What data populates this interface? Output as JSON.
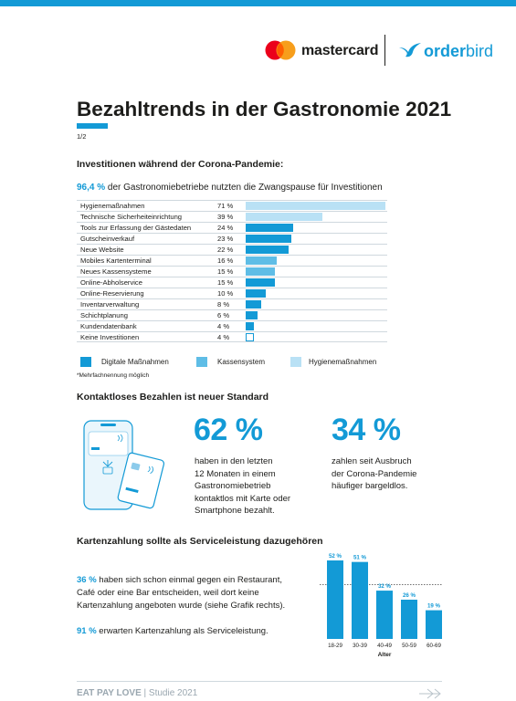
{
  "brand": {
    "mastercard": "mastercard",
    "orderbird_a": "order",
    "orderbird_b": "bird",
    "accent": "#139ad6"
  },
  "title": "Bezahltrends in der Gastronomie 2021",
  "page": "1/2",
  "section1": {
    "heading": "Investitionen während der Corona-Pandemie:",
    "intro_value": "96,4 %",
    "intro_text": " der Gastronomiebetriebe nutzten die Zwangspause für Investitionen",
    "footnote": "*Mehrfachnennung möglich"
  },
  "legend": [
    {
      "label": "Digitale Maßnahmen",
      "color": "#139ad6"
    },
    {
      "label": "Kassensystem",
      "color": "#5fbde6"
    },
    {
      "label": "Hygienemaßnahmen",
      "color": "#b9e1f5"
    }
  ],
  "section2": {
    "heading": "Kontaktloses Bezahlen ist neuer Standard",
    "stat1_value": "62 %",
    "stat1_lines": [
      "haben in den letzten",
      "12 Monaten in einem",
      "Gastronomiebetrieb",
      "kontaktlos mit Karte oder",
      "Smartphone bezahlt."
    ],
    "stat2_value": "34 %",
    "stat2_lines": [
      "zahlen seit Ausbruch",
      "der Corona-Pandemie",
      "häufiger bargeldlos."
    ]
  },
  "section3": {
    "heading": "Kartenzahlung sollte als Serviceleistung dazugehören",
    "p1_value": "36 %",
    "p1_lines": [
      " haben sich schon einmal gegen ein Restaurant,",
      "Café oder eine Bar entscheiden, weil dort keine",
      "Kartenzahlung angeboten wurde (siehe Grafik rechts)."
    ],
    "p2_value": "91 %",
    "p2_text": " erwarten Kartenzahlung als Serviceleistung."
  },
  "footer": {
    "brand": "EAT PAY LOVE",
    "sep": " | ",
    "study": "Studie 2021"
  },
  "chart_data": [
    {
      "type": "bar",
      "orientation": "horizontal",
      "categories": [
        "Hygienemaßnahmen",
        "Technische Sicherheiteinrichtung",
        "Tools zur Erfassung der Gästedaten",
        "Gutscheinverkauf",
        "Neue Website",
        "Mobiles Kartenterminal",
        "Neues Kassensysteme",
        "Online-Abholservice",
        "Online-Reservierung",
        "Inventarverwaltung",
        "Schichtplanung",
        "Kundendatenbank",
        "Keine Investitionen"
      ],
      "values": [
        71,
        39,
        24,
        23,
        22,
        16,
        15,
        15,
        10,
        8,
        6,
        4,
        4
      ],
      "value_labels": [
        "71 %",
        "39 %",
        "24 %",
        "23 %",
        "22 %",
        "16 %",
        "15 %",
        "15 %",
        "10 %",
        "8 %",
        "6 %",
        "4 %",
        "4 %"
      ],
      "groups": [
        "Hygienemaßnahmen",
        "Hygienemaßnahmen",
        "Digitale Maßnahmen",
        "Digitale Maßnahmen",
        "Digitale Maßnahmen",
        "Kassensystem",
        "Kassensystem",
        "Digitale Maßnahmen",
        "Digitale Maßnahmen",
        "Digitale Maßnahmen",
        "Digitale Maßnahmen",
        "Digitale Maßnahmen",
        "none"
      ],
      "xlim": [
        0,
        71
      ],
      "legend_position": "bottom"
    },
    {
      "type": "bar",
      "categories": [
        "18-29",
        "30-39",
        "40-49",
        "50-59",
        "60-69"
      ],
      "values": [
        52,
        51,
        32,
        26,
        19
      ],
      "value_labels": [
        "52 %",
        "51 %",
        "32 %",
        "26 %",
        "19 %"
      ],
      "xlabel": "Alter",
      "ylabel": "",
      "ylim": [
        0,
        52
      ],
      "reference_line": 36
    }
  ]
}
